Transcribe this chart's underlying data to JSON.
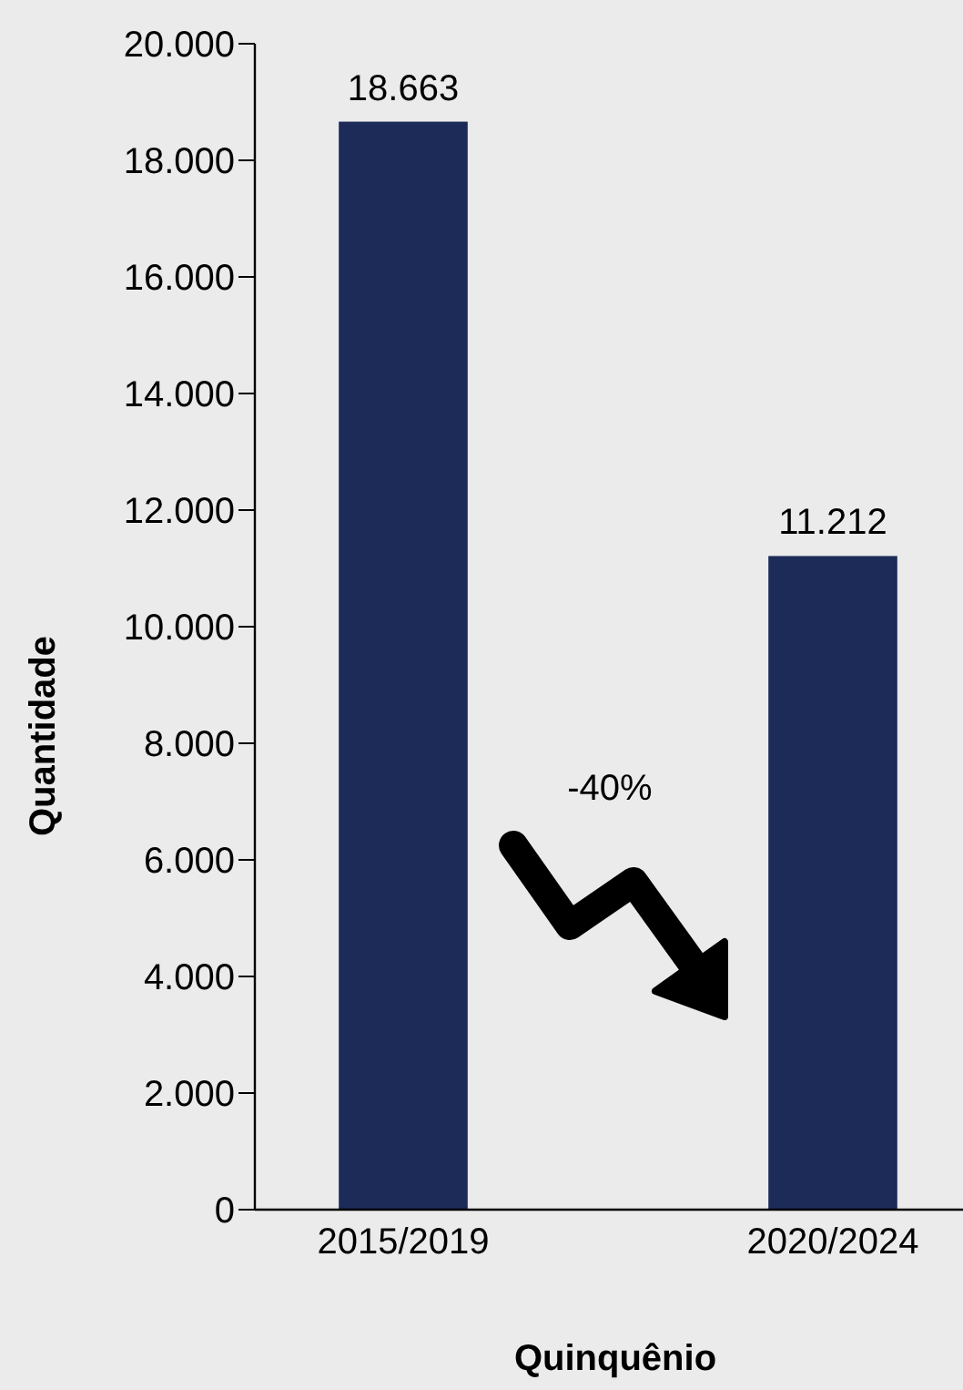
{
  "chart_data": {
    "type": "bar",
    "xlabel": "Quinquênio",
    "ylabel": "Quantidade",
    "categories": [
      "2015/2019",
      "2020/2024"
    ],
    "values": [
      18663,
      11212
    ],
    "value_labels": [
      "18.663",
      "11.212"
    ],
    "color": "#1c2b57",
    "ylim": [
      0,
      20000
    ],
    "yticks": [
      0,
      {
        "value": 2000,
        "label": "2.000"
      },
      {
        "value": 4000,
        "label": "4.000"
      },
      {
        "value": 6000,
        "label": "6.000"
      },
      {
        "value": 8000,
        "label": "8.000"
      },
      {
        "value": 10000,
        "label": "10.000"
      },
      {
        "value": 12000,
        "label": "12.000"
      },
      {
        "value": 14000,
        "label": "14.000"
      },
      {
        "value": 16000,
        "label": "16.000"
      },
      {
        "value": 18000,
        "label": "18.000"
      },
      {
        "value": 20000,
        "label": "20.000"
      }
    ],
    "annotations": [
      "-40%"
    ],
    "grid": false
  }
}
